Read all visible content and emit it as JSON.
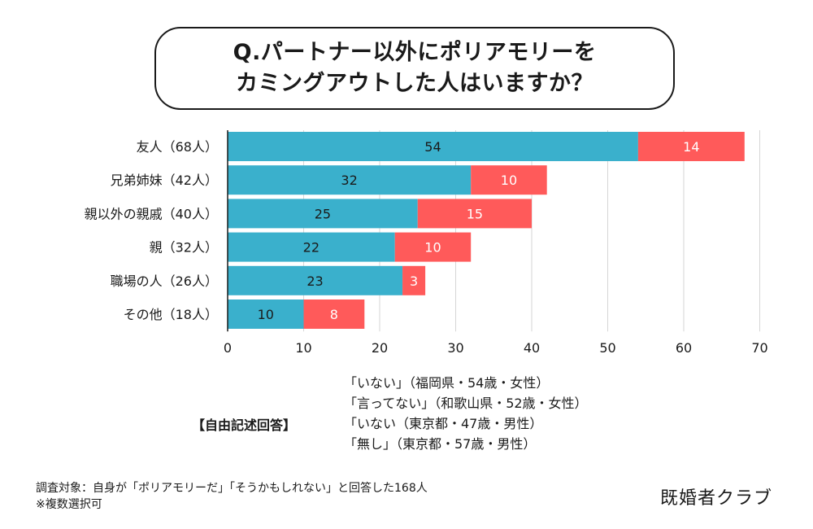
{
  "title": {
    "line1": "Q.パートナー以外にポリアモリーを",
    "line2": "カミングアウトした人はいますか？"
  },
  "colors": {
    "series_1": "#3ab0cc",
    "series_2": "#ff5a5a",
    "axis": "#1a1a1a",
    "grid": "#d6d6d6"
  },
  "chart_data": {
    "type": "bar",
    "orientation": "horizontal",
    "stacked": true,
    "categories": [
      "友人（68人）",
      "兄弟姉妹（42人）",
      "親以外の親戚（40人）",
      "親（32人）",
      "職場の人（26人）",
      "その他（18人）"
    ],
    "series": [
      {
        "values": [
          54,
          32,
          25,
          22,
          23,
          10
        ]
      },
      {
        "values": [
          14,
          10,
          15,
          10,
          3,
          8
        ]
      }
    ],
    "x_ticks": [
      0,
      10,
      20,
      30,
      40,
      50,
      60,
      70
    ],
    "xlim": [
      0,
      70
    ],
    "grid": true,
    "legend": "none"
  },
  "free_answers": {
    "heading": "【自由記述回答】",
    "items": [
      "「いない」（福岡県・54歳・女性）",
      "「言ってない」（和歌山県・52歳・女性）",
      "「いない（東京都・47歳・男性）",
      "「無し」（東京都・57歳・男性）"
    ]
  },
  "footnote": {
    "line1": "調査対象：自身が「ポリアモリーだ」「そうかもしれない」と回答した168人",
    "line2": "※複数選択可"
  },
  "brand": "既婚者クラブ"
}
